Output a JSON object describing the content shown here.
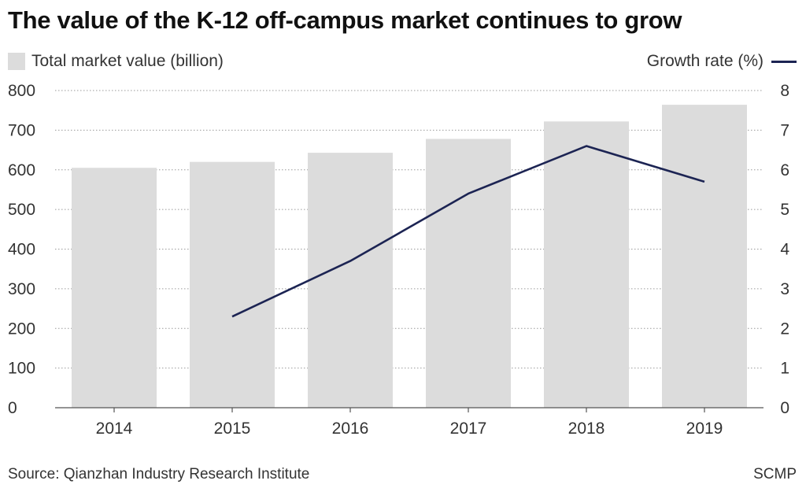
{
  "chart_data": {
    "type": "bar",
    "title": "The value of the K-12 off-campus market continues to grow",
    "categories": [
      "2014",
      "2015",
      "2016",
      "2017",
      "2018",
      "2019"
    ],
    "series": [
      {
        "name": "Total market value (billion)",
        "type": "bar",
        "axis": "left",
        "color": "#dcdcdc",
        "values": [
          605,
          620,
          643,
          678,
          722,
          764
        ]
      },
      {
        "name": "Growth rate (%)",
        "type": "line",
        "axis": "right",
        "color": "#1c2453",
        "values": [
          null,
          2.3,
          3.7,
          5.4,
          6.6,
          5.7
        ]
      }
    ],
    "y_left": {
      "min": 0,
      "max": 800,
      "ticks": [
        "0",
        "100",
        "200",
        "300",
        "400",
        "500",
        "600",
        "700",
        "800"
      ]
    },
    "y_right": {
      "min": 0,
      "max": 8,
      "ticks": [
        "0",
        "1",
        "2",
        "3",
        "4",
        "5",
        "6",
        "7",
        "8"
      ]
    },
    "grid": true,
    "legend_position": "top"
  },
  "legend": {
    "bars_label": "Total market value (billion)",
    "line_label": "Growth rate (%)"
  },
  "footer": {
    "source": "Source: Qianzhan Industry Research Institute",
    "brand": "SCMP"
  }
}
